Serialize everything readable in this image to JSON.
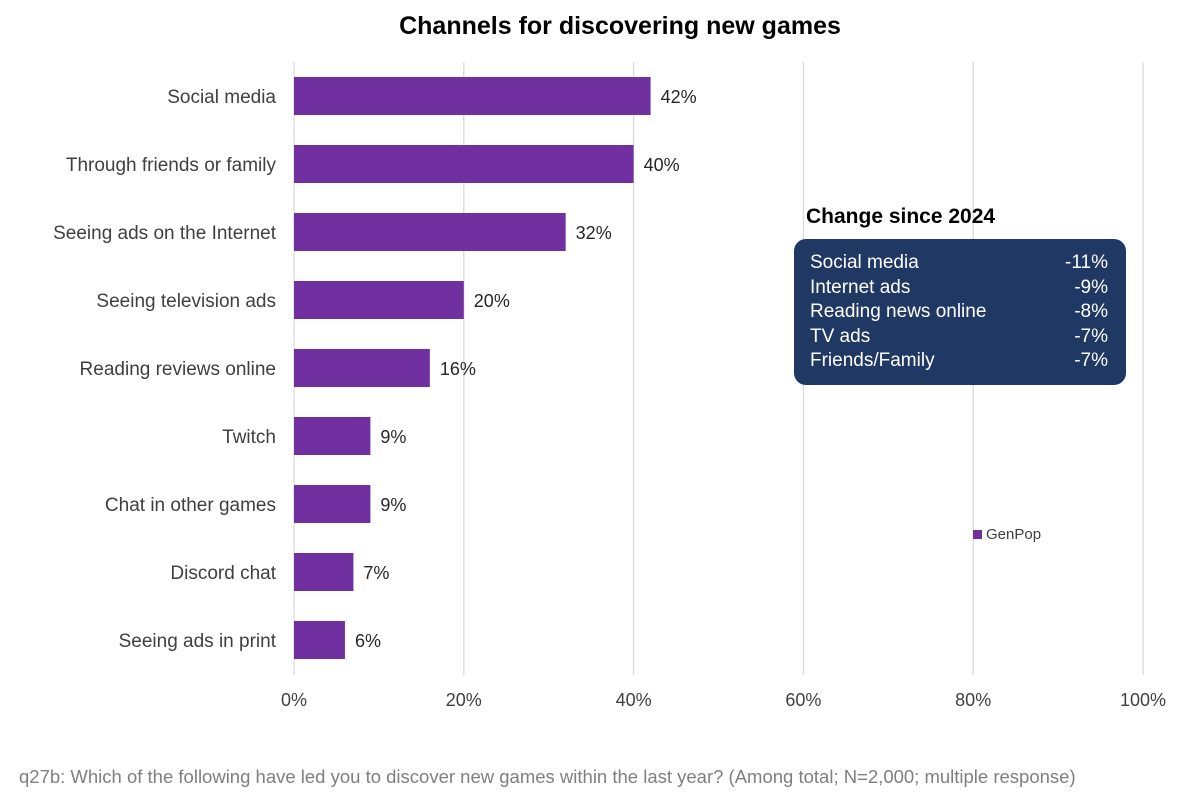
{
  "chart_data": {
    "type": "bar",
    "orientation": "horizontal",
    "title": "Channels for discovering new games",
    "categories": [
      "Social media",
      "Through friends or family",
      "Seeing ads on the Internet",
      "Seeing television ads",
      "Reading reviews online",
      "Twitch",
      "Chat in other games",
      "Discord chat",
      "Seeing ads in print"
    ],
    "series": [
      {
        "name": "GenPop",
        "values": [
          42,
          40,
          32,
          20,
          16,
          9,
          9,
          7,
          6
        ]
      }
    ],
    "value_labels": [
      "42%",
      "40%",
      "32%",
      "20%",
      "16%",
      "9%",
      "9%",
      "7%",
      "6%"
    ],
    "xlim": [
      0,
      100
    ],
    "x_ticks": [
      0,
      20,
      40,
      60,
      80,
      100
    ],
    "x_tick_labels": [
      "0%",
      "20%",
      "40%",
      "60%",
      "80%",
      "100%"
    ],
    "grid": true,
    "bar_color": "#7030a0",
    "legend": {
      "position": "right",
      "label": "GenPop"
    }
  },
  "change_panel": {
    "title": "Change since 2024",
    "background": "#1f3864",
    "rows": [
      {
        "label": "Social media",
        "value": "-11%"
      },
      {
        "label": "Internet ads",
        "value": "-9%"
      },
      {
        "label": "Reading news online",
        "value": "-8%"
      },
      {
        "label": "TV ads",
        "value": "-7%"
      },
      {
        "label": "Friends/Family",
        "value": "-7%"
      }
    ]
  },
  "footnote": "q27b: Which of the following have led you to discover new games within the last year? (Among total; N=2,000; multiple response)"
}
